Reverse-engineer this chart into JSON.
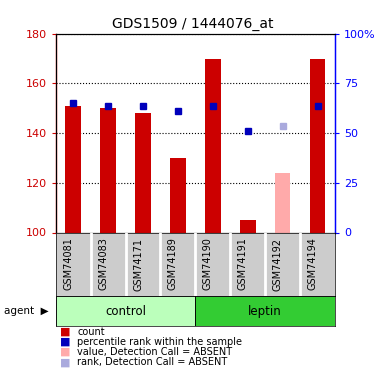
{
  "title": "GDS1509 / 1444076_at",
  "samples": [
    "GSM74081",
    "GSM74083",
    "GSM74171",
    "GSM74189",
    "GSM74190",
    "GSM74191",
    "GSM74192",
    "GSM74194"
  ],
  "red_values": [
    151,
    150,
    148,
    130,
    170,
    105,
    null,
    170
  ],
  "pink_values": [
    null,
    null,
    null,
    null,
    null,
    null,
    124,
    null
  ],
  "blue_values": [
    152,
    151,
    151,
    149,
    151,
    141,
    null,
    151
  ],
  "light_blue_values": [
    null,
    null,
    null,
    null,
    null,
    null,
    143,
    null
  ],
  "ylim_left": [
    100,
    180
  ],
  "yticks_left": [
    100,
    120,
    140,
    160,
    180
  ],
  "ytick_labels_right": [
    "0",
    "25",
    "50",
    "75",
    "100%"
  ],
  "bar_width": 0.45,
  "red_color": "#CC0000",
  "pink_color": "#FFAAAA",
  "blue_color": "#0000BB",
  "light_blue_color": "#AAAADD",
  "tick_label_area_color": "#CCCCCC",
  "control_bg_color": "#BBFFBB",
  "leptin_bg_color": "#33CC33",
  "grid_color": "black",
  "separator_color": "white",
  "n_control": 4,
  "n_leptin": 4
}
